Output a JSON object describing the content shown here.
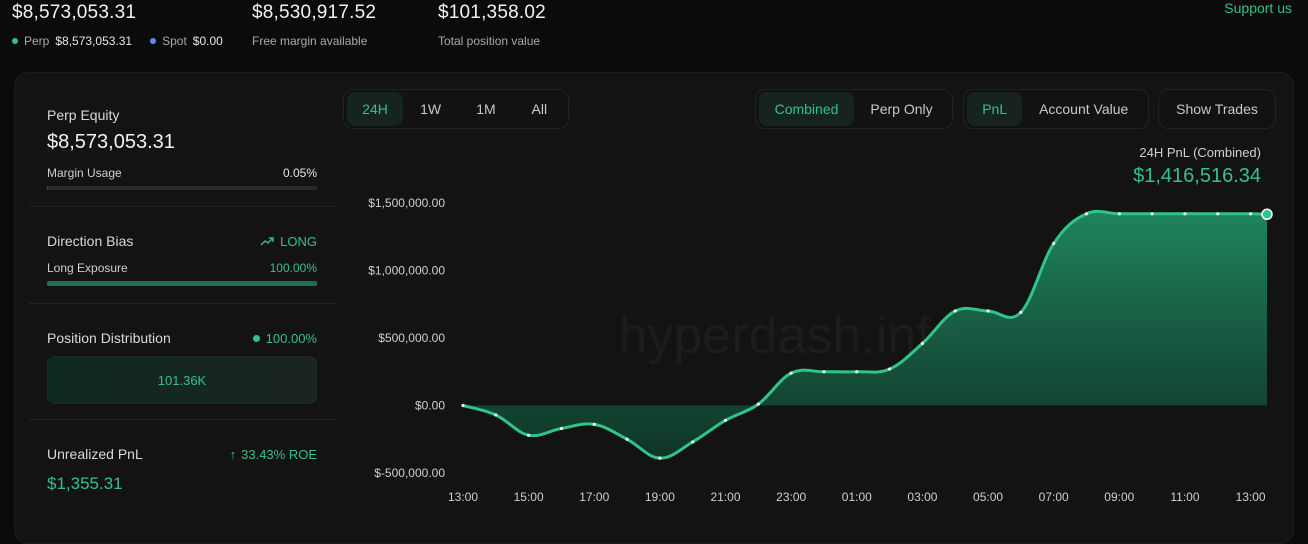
{
  "header": {
    "equity": {
      "value": "$8,573,053.31"
    },
    "perp": {
      "label": "Perp",
      "value": "$8,573,053.31"
    },
    "spot": {
      "label": "Spot",
      "value": "$0.00"
    },
    "free_margin": {
      "value": "$8,530,917.52",
      "label": "Free margin available"
    },
    "position_value": {
      "value": "$101,358.02",
      "label": "Total position value"
    },
    "support_link": "Support us"
  },
  "left": {
    "perp_equity": {
      "label": "Perp Equity",
      "value": "$8,573,053.31",
      "margin_label": "Margin Usage",
      "margin_value": "0.05%",
      "margin_fraction": 0.0005
    },
    "direction": {
      "label": "Direction Bias",
      "value": "LONG",
      "exposure_label": "Long Exposure",
      "exposure_value": "100.00%",
      "exposure_fraction": 1.0
    },
    "distribution": {
      "label": "Position Distribution",
      "value": "100.00%",
      "block_value": "101.36K"
    },
    "unrealized": {
      "label": "Unrealized PnL",
      "roe": "33.43% ROE",
      "value": "$1,355.31"
    }
  },
  "controls": {
    "ranges": [
      "24H",
      "1W",
      "1M",
      "All"
    ],
    "active_range": "24H",
    "modes": [
      "Combined",
      "Perp Only"
    ],
    "active_mode": "Combined",
    "metrics": [
      "PnL",
      "Account Value"
    ],
    "active_metric": "PnL",
    "show_trades": "Show Trades"
  },
  "summary": {
    "title": "24H PnL (Combined)",
    "value": "$1,416,516.34"
  },
  "watermark": "hyperdash.info",
  "colors": {
    "accent": "#35c08a",
    "background": "#0b0b0b",
    "panel": "#131313"
  },
  "chart_data": {
    "type": "area",
    "x": [
      "13:00",
      "14:00",
      "15:00",
      "16:00",
      "17:00",
      "18:00",
      "19:00",
      "20:00",
      "21:00",
      "22:00",
      "23:00",
      "00:00",
      "01:00",
      "02:00",
      "03:00",
      "04:00",
      "05:00",
      "06:00",
      "07:00",
      "08:00",
      "09:00",
      "10:00",
      "11:00",
      "12:00",
      "13:00",
      "13:30"
    ],
    "y": [
      0,
      -70000,
      -220000,
      -170000,
      -140000,
      -250000,
      -390000,
      -270000,
      -110000,
      10000,
      240000,
      250000,
      250000,
      270000,
      460000,
      700000,
      700000,
      690000,
      1200000,
      1420000,
      1420000,
      1420000,
      1420000,
      1420000,
      1420000,
      1416516.34
    ],
    "x_ticks": [
      "13:00",
      "15:00",
      "17:00",
      "19:00",
      "21:00",
      "23:00",
      "01:00",
      "03:00",
      "05:00",
      "07:00",
      "09:00",
      "11:00",
      "13:00"
    ],
    "y_ticks": [
      "$1,500,000.00",
      "$1,000,000.00",
      "$500,000.00",
      "$0.00",
      "$-500,000.00"
    ],
    "y_tick_values": [
      1500000,
      1000000,
      500000,
      0,
      -500000
    ],
    "ylim": [
      -500000,
      1500000
    ],
    "grid": false,
    "legend": "none"
  }
}
